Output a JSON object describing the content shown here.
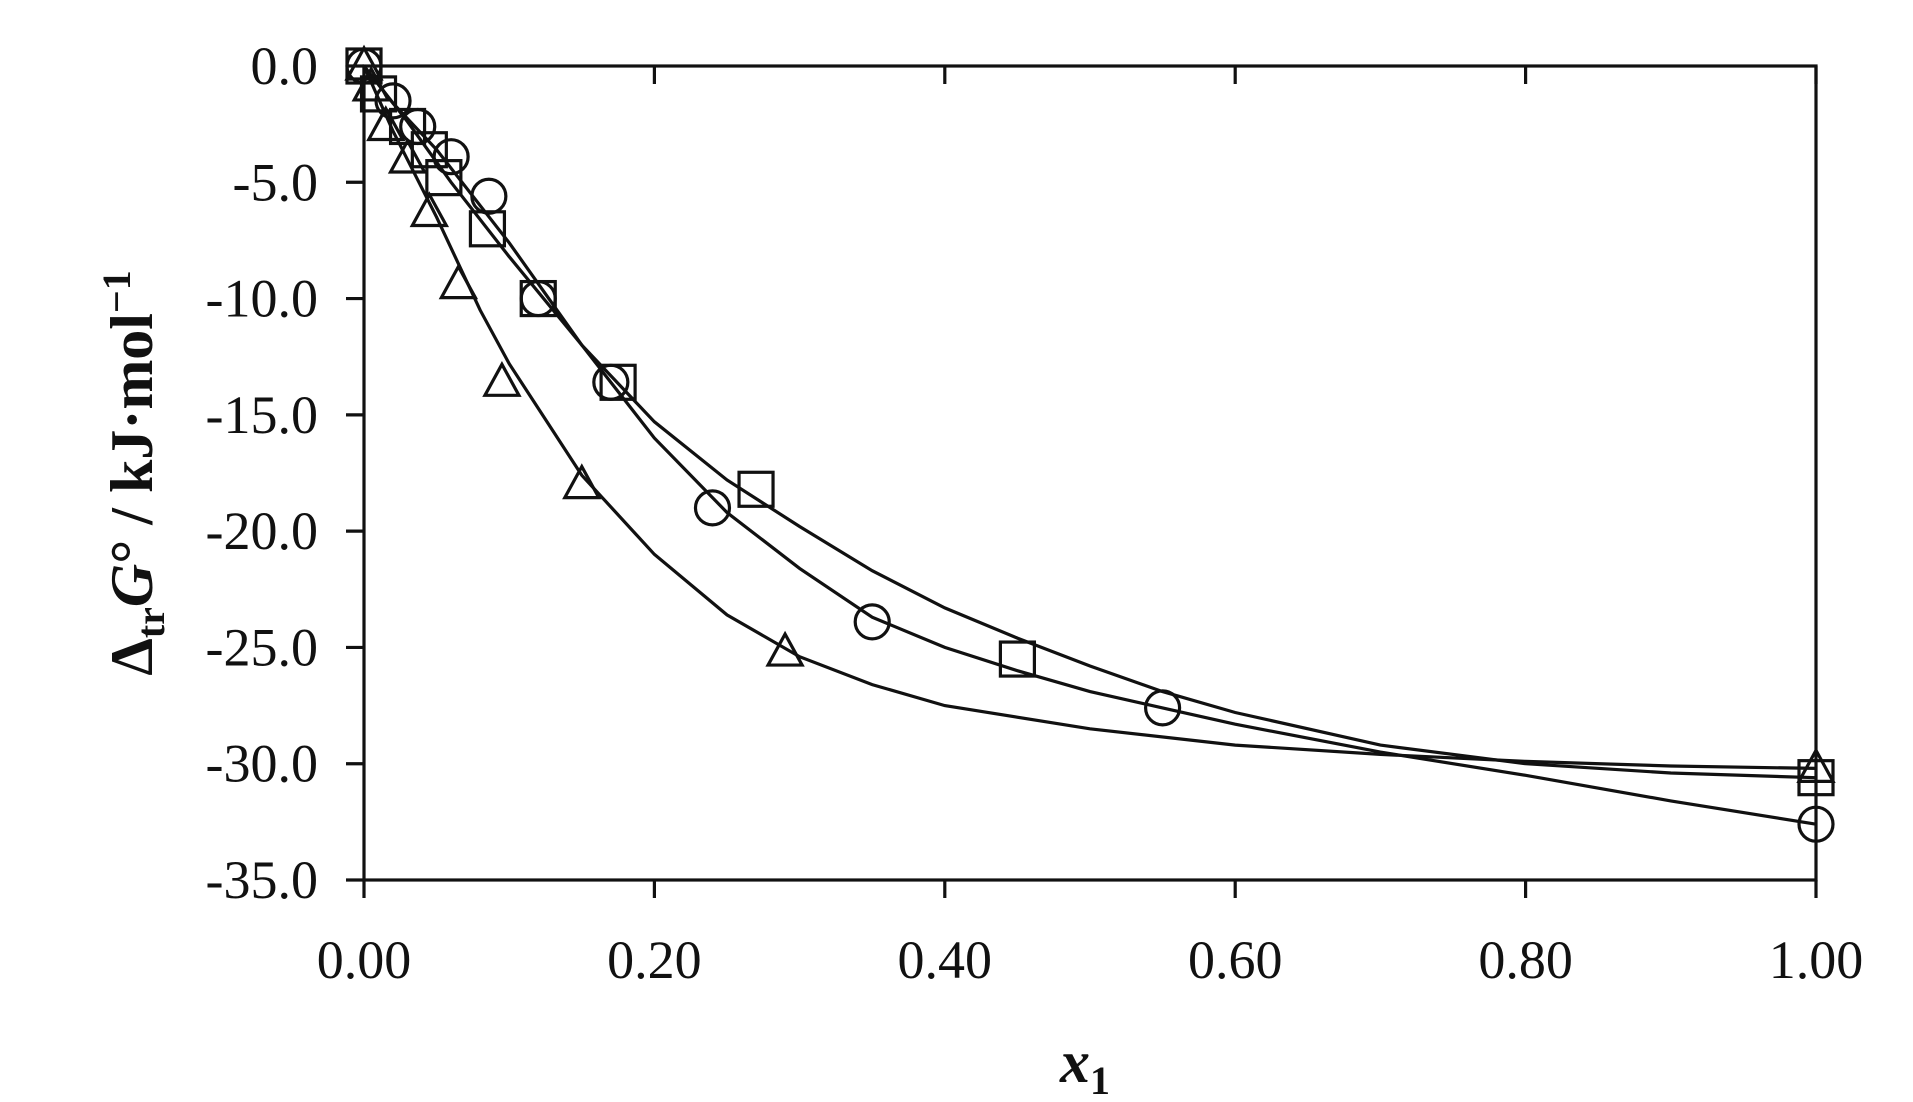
{
  "chart_data": {
    "type": "scatter",
    "xlim": [
      0,
      1
    ],
    "ylim": [
      -35,
      0
    ],
    "grid": false,
    "legend": "none",
    "x_ticks": [
      "0.00",
      "0.20",
      "0.40",
      "0.60",
      "0.80",
      "1.00"
    ],
    "y_ticks": [
      "0.0",
      "-5.0",
      "-10.0",
      "-15.0",
      "-20.0",
      "-25.0",
      "-30.0",
      "-35.0"
    ],
    "xlabel": {
      "var": "x",
      "sub": "1"
    },
    "ylabel": {
      "delta": "Δ",
      "sub": "tr",
      "var": "G",
      "rest": "° / kJ·mol",
      "sup": "−1"
    },
    "series": [
      {
        "marker": "circle",
        "points": [
          [
            0.0,
            0.0
          ],
          [
            0.02,
            -1.5
          ],
          [
            0.037,
            -2.6
          ],
          [
            0.06,
            -3.9
          ],
          [
            0.086,
            -5.6
          ],
          [
            0.12,
            -10.0
          ],
          [
            0.17,
            -13.6
          ],
          [
            0.24,
            -19.0
          ],
          [
            0.35,
            -23.9
          ],
          [
            0.55,
            -27.6
          ],
          [
            1.0,
            -32.6
          ]
        ],
        "fit": [
          [
            0.0,
            0.0
          ],
          [
            0.02,
            -1.6
          ],
          [
            0.05,
            -3.6
          ],
          [
            0.1,
            -7.6
          ],
          [
            0.15,
            -12.0
          ],
          [
            0.2,
            -16.0
          ],
          [
            0.25,
            -19.2
          ],
          [
            0.3,
            -21.6
          ],
          [
            0.35,
            -23.7
          ],
          [
            0.4,
            -25.0
          ],
          [
            0.45,
            -26.0
          ],
          [
            0.5,
            -26.9
          ],
          [
            0.55,
            -27.6
          ],
          [
            0.6,
            -28.3
          ],
          [
            0.7,
            -29.5
          ],
          [
            0.8,
            -30.5
          ],
          [
            0.9,
            -31.6
          ],
          [
            1.0,
            -32.6
          ]
        ]
      },
      {
        "marker": "square",
        "points": [
          [
            0.0,
            0.0
          ],
          [
            0.01,
            -1.2
          ],
          [
            0.03,
            -2.6
          ],
          [
            0.045,
            -3.6
          ],
          [
            0.055,
            -4.8
          ],
          [
            0.085,
            -7.0
          ],
          [
            0.12,
            -10.0
          ],
          [
            0.175,
            -13.6
          ],
          [
            0.27,
            -18.2
          ],
          [
            0.45,
            -25.5
          ],
          [
            1.0,
            -30.6
          ]
        ],
        "fit": [
          [
            0.0,
            0.0
          ],
          [
            0.03,
            -2.4
          ],
          [
            0.06,
            -5.0
          ],
          [
            0.1,
            -8.2
          ],
          [
            0.15,
            -12.0
          ],
          [
            0.2,
            -15.3
          ],
          [
            0.25,
            -17.8
          ],
          [
            0.3,
            -19.8
          ],
          [
            0.35,
            -21.7
          ],
          [
            0.4,
            -23.3
          ],
          [
            0.45,
            -24.6
          ],
          [
            0.5,
            -25.8
          ],
          [
            0.55,
            -26.9
          ],
          [
            0.6,
            -27.8
          ],
          [
            0.7,
            -29.2
          ],
          [
            0.8,
            -30.0
          ],
          [
            0.9,
            -30.4
          ],
          [
            1.0,
            -30.6
          ]
        ]
      },
      {
        "marker": "triangle",
        "points": [
          [
            0.0,
            0.0
          ],
          [
            0.005,
            -0.9
          ],
          [
            0.015,
            -2.6
          ],
          [
            0.03,
            -4.0
          ],
          [
            0.045,
            -6.3
          ],
          [
            0.065,
            -9.4
          ],
          [
            0.095,
            -13.6
          ],
          [
            0.15,
            -18.0
          ],
          [
            0.29,
            -25.2
          ],
          [
            1.0,
            -30.2
          ]
        ],
        "fit": [
          [
            0.0,
            0.0
          ],
          [
            0.02,
            -2.8
          ],
          [
            0.05,
            -6.5
          ],
          [
            0.08,
            -10.5
          ],
          [
            0.1,
            -12.8
          ],
          [
            0.15,
            -17.6
          ],
          [
            0.2,
            -21.0
          ],
          [
            0.25,
            -23.6
          ],
          [
            0.3,
            -25.4
          ],
          [
            0.35,
            -26.6
          ],
          [
            0.4,
            -27.5
          ],
          [
            0.5,
            -28.5
          ],
          [
            0.6,
            -29.2
          ],
          [
            0.7,
            -29.6
          ],
          [
            0.8,
            -29.9
          ],
          [
            0.9,
            -30.1
          ],
          [
            1.0,
            -30.2
          ]
        ]
      }
    ]
  }
}
